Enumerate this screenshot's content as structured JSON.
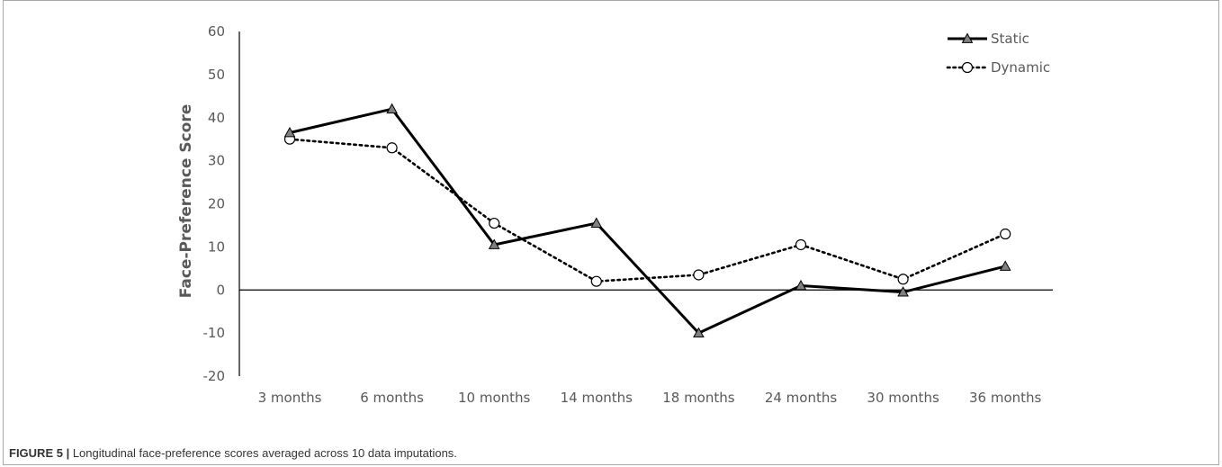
{
  "chart_data": {
    "type": "line",
    "categories": [
      "3 months",
      "6 months",
      "10 months",
      "14 months",
      "18 months",
      "24 months",
      "30 months",
      "36 months"
    ],
    "series": [
      {
        "name": "Static",
        "values": [
          36.5,
          42,
          10.5,
          15.5,
          -10,
          1,
          -0.5,
          5.5
        ],
        "line_style": "solid",
        "marker": "triangle",
        "color": "#000000",
        "marker_fill": "#808080"
      },
      {
        "name": "Dynamic",
        "values": [
          35,
          33,
          15.5,
          2,
          3.5,
          10.5,
          2.5,
          13
        ],
        "line_style": "dotted",
        "marker": "circle",
        "color": "#000000",
        "marker_fill": "#ffffff"
      }
    ],
    "title": "",
    "xlabel": "",
    "ylabel": "Face-Preference Score",
    "ylim": [
      -20,
      60
    ],
    "yticks": [
      60,
      50,
      40,
      30,
      20,
      10,
      0,
      -10,
      -20
    ],
    "grid": false,
    "zero_line": true,
    "legend_position": "top-right"
  },
  "caption": {
    "label": "FIGURE 5 |",
    "text": " Longitudinal face-preference scores averaged across 10 data imputations."
  }
}
